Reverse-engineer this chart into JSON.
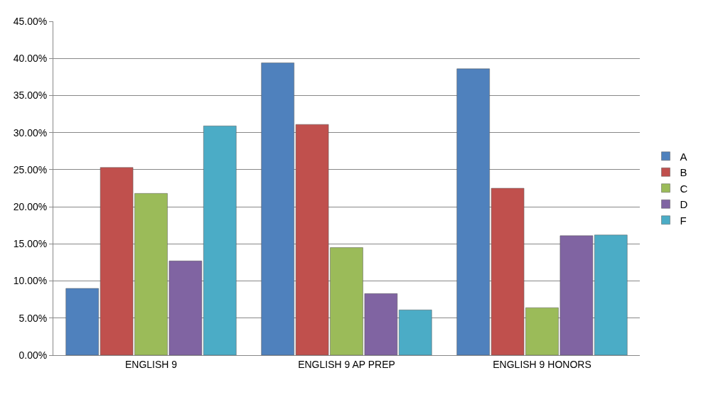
{
  "chart_data": {
    "type": "bar",
    "categories": [
      "ENGLISH 9",
      "ENGLISH 9 AP PREP",
      "ENGLISH 9 HONORS"
    ],
    "series": [
      {
        "name": "A",
        "color": "#4f81bd",
        "values": [
          9.0,
          39.4,
          38.6
        ]
      },
      {
        "name": "B",
        "color": "#c0504d",
        "values": [
          25.3,
          31.1,
          22.5
        ]
      },
      {
        "name": "C",
        "color": "#9bbb59",
        "values": [
          21.8,
          14.5,
          6.4
        ]
      },
      {
        "name": "D",
        "color": "#8064a2",
        "values": [
          12.7,
          8.3,
          16.1
        ]
      },
      {
        "name": "F",
        "color": "#4bacc6",
        "values": [
          30.9,
          6.1,
          16.2
        ]
      }
    ],
    "ylim": [
      0,
      45
    ],
    "yticks": [
      {
        "value": 0,
        "label": "0.00%"
      },
      {
        "value": 5,
        "label": "5.00%"
      },
      {
        "value": 10,
        "label": "10.00%"
      },
      {
        "value": 15,
        "label": "15.00%"
      },
      {
        "value": 20,
        "label": "20.00%"
      },
      {
        "value": 25,
        "label": "25.00%"
      },
      {
        "value": 30,
        "label": "30.00%"
      },
      {
        "value": 35,
        "label": "35.00%"
      },
      {
        "value": 40,
        "label": "40.00%"
      },
      {
        "value": 45,
        "label": "45.00%"
      }
    ],
    "grid": "y",
    "legend": "right"
  }
}
